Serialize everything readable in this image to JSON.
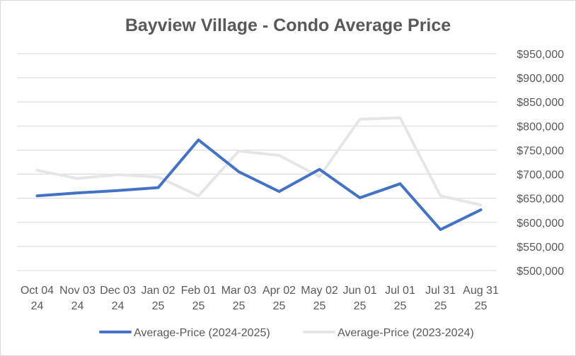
{
  "chart_data": {
    "type": "line",
    "title": "Bayview Village - Condo Average Price",
    "xlabel": "",
    "ylabel": "",
    "categories": [
      [
        "Oct 04",
        "24"
      ],
      [
        "Nov 03",
        "24"
      ],
      [
        "Dec 03",
        "24"
      ],
      [
        "Jan 02",
        "25"
      ],
      [
        "Feb 01",
        "25"
      ],
      [
        "Mar 03",
        "25"
      ],
      [
        "Apr 02",
        "25"
      ],
      [
        "May 02",
        "25"
      ],
      [
        "Jun 01",
        "25"
      ],
      [
        "Jul 01",
        "25"
      ],
      [
        "Jul 31",
        "25"
      ],
      [
        "Aug 31",
        "25"
      ]
    ],
    "ylim": [
      500000,
      950000
    ],
    "yticks": [
      500000,
      550000,
      600000,
      650000,
      700000,
      750000,
      800000,
      850000,
      900000,
      950000
    ],
    "ytick_labels": [
      "$500,000",
      "$550,000",
      "$600,000",
      "$650,000",
      "$700,000",
      "$750,000",
      "$800,000",
      "$850,000",
      "$900,000",
      "$950,000"
    ],
    "grid": true,
    "legend_position": "bottom",
    "series": [
      {
        "name": "Average-Price (2024-2025)",
        "color": "#4472c4",
        "values": [
          655000,
          661000,
          666000,
          672000,
          771000,
          705000,
          664000,
          710000,
          651000,
          680000,
          585000,
          626000
        ]
      },
      {
        "name": "Average-Price (2023-2024)",
        "color": "#e7e6e6",
        "values": [
          708000,
          691000,
          699000,
          694000,
          655000,
          748000,
          739000,
          695000,
          814000,
          817000,
          655000,
          636000
        ]
      }
    ]
  }
}
